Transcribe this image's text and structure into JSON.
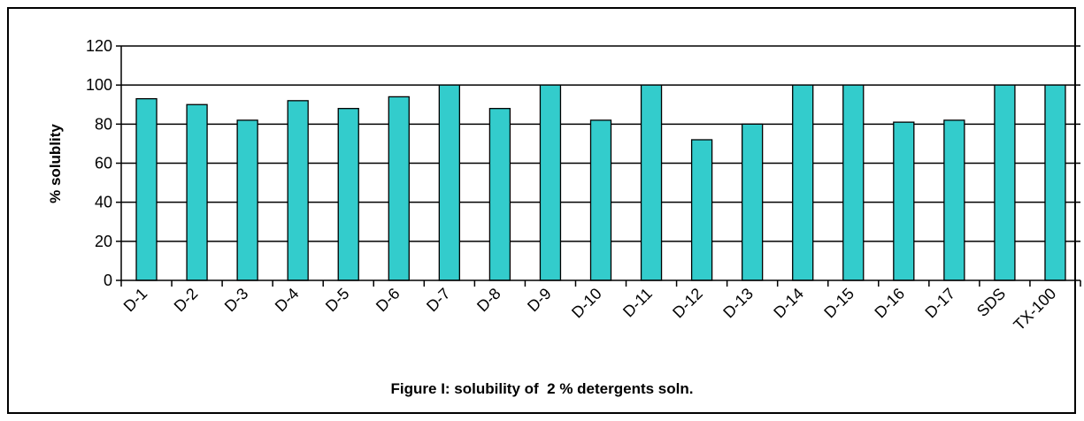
{
  "chart_data": {
    "type": "bar",
    "title": "Figure I: solubility of  2 % detergents soln.",
    "ylabel": "% solublity",
    "xlabel": "",
    "ylim": [
      0,
      120
    ],
    "yticks": [
      0,
      20,
      40,
      60,
      80,
      100,
      120
    ],
    "grid": true,
    "legend": "none",
    "categories": [
      "D-1",
      "D-2",
      "D-3",
      "D-4",
      "D-5",
      "D-6",
      "D-7",
      "D-8",
      "D-9",
      "D-10",
      "D-11",
      "D-12",
      "D-13",
      "D-14",
      "D-15",
      "D-16",
      "D-17",
      "SDS",
      "TX-100"
    ],
    "values": [
      93,
      90,
      82,
      92,
      88,
      94,
      100,
      88,
      100,
      82,
      100,
      72,
      80,
      100,
      100,
      81,
      82,
      100,
      100
    ],
    "bar_color": "#33CCCC"
  }
}
